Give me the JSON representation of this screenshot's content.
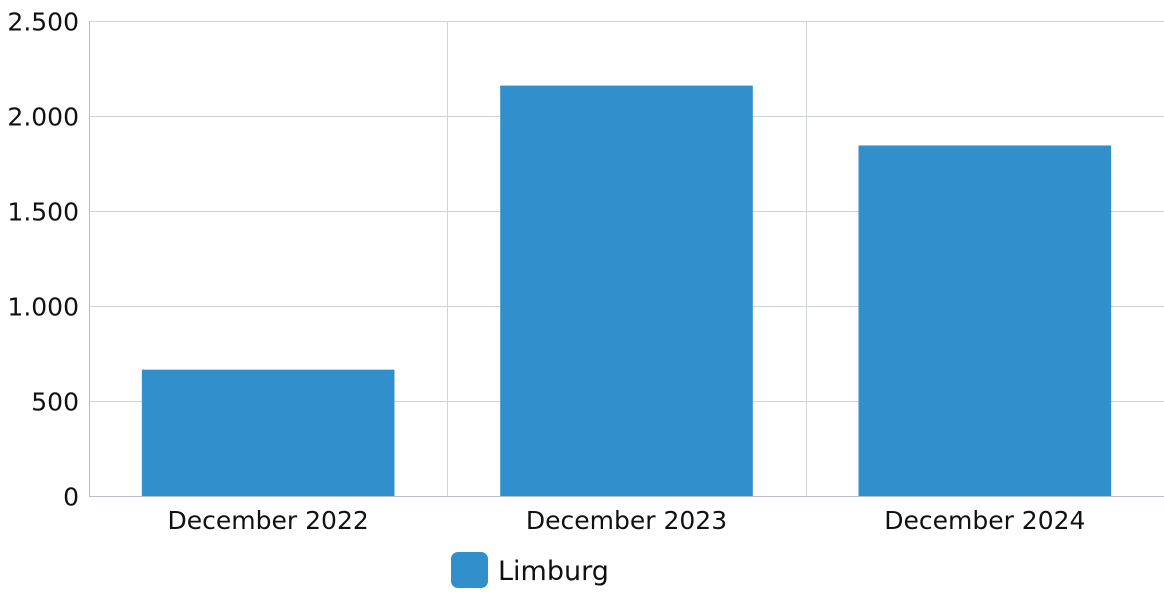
{
  "chart_data": {
    "type": "bar",
    "categories": [
      "December 2022",
      "December 2023",
      "December 2024"
    ],
    "series": [
      {
        "name": "Limburg",
        "values": [
          665,
          2160,
          1845
        ],
        "color": "#318fcc"
      }
    ],
    "ylim": [
      0,
      2500
    ],
    "yticks": [
      0,
      500,
      1000,
      1500,
      2000,
      2500
    ],
    "ytick_labels": [
      "0",
      "500",
      "1.000",
      "1.500",
      "2.000",
      "2.500"
    ],
    "grid": true,
    "legend_position": "bottom-center",
    "gridline_color": "#cfd4da",
    "axis_color": "#b9bec5"
  }
}
